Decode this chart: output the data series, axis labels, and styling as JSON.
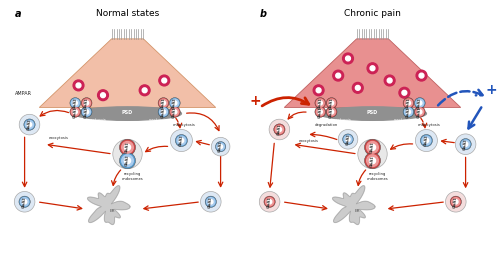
{
  "title_a": "Normal states",
  "title_b": "Chronic pain",
  "label_a": "a",
  "label_b": "b",
  "bg_color": "#ffffff",
  "neuron_color_a": "#f2bfa8",
  "neuron_color_b": "#e89090",
  "neuron_edge_a": "#d4956a",
  "neuron_edge_b": "#c06060",
  "psd_color": "#909090",
  "receptor_blue": "#5599cc",
  "receptor_red": "#cc4444",
  "receptor_blue_inner": "#aaccee",
  "receptor_red_inner": "#ee9999",
  "arrow_red": "#cc2200",
  "arrow_blue": "#2255bb",
  "dot_color": "#cc2255",
  "er_color": "#cccccc",
  "endosome_outer": "#c8c8e0",
  "endosome_inner_blue": "#d0e4f4",
  "endosome_inner_red": "#f4d0d0",
  "spine_color": "#999999",
  "text_color": "#222222",
  "plus_red": "#cc2200",
  "plus_blue": "#2255bb",
  "label_fontsize": 7,
  "title_fontsize": 6.5,
  "small_text": 3.0,
  "tiny_text": 2.5
}
